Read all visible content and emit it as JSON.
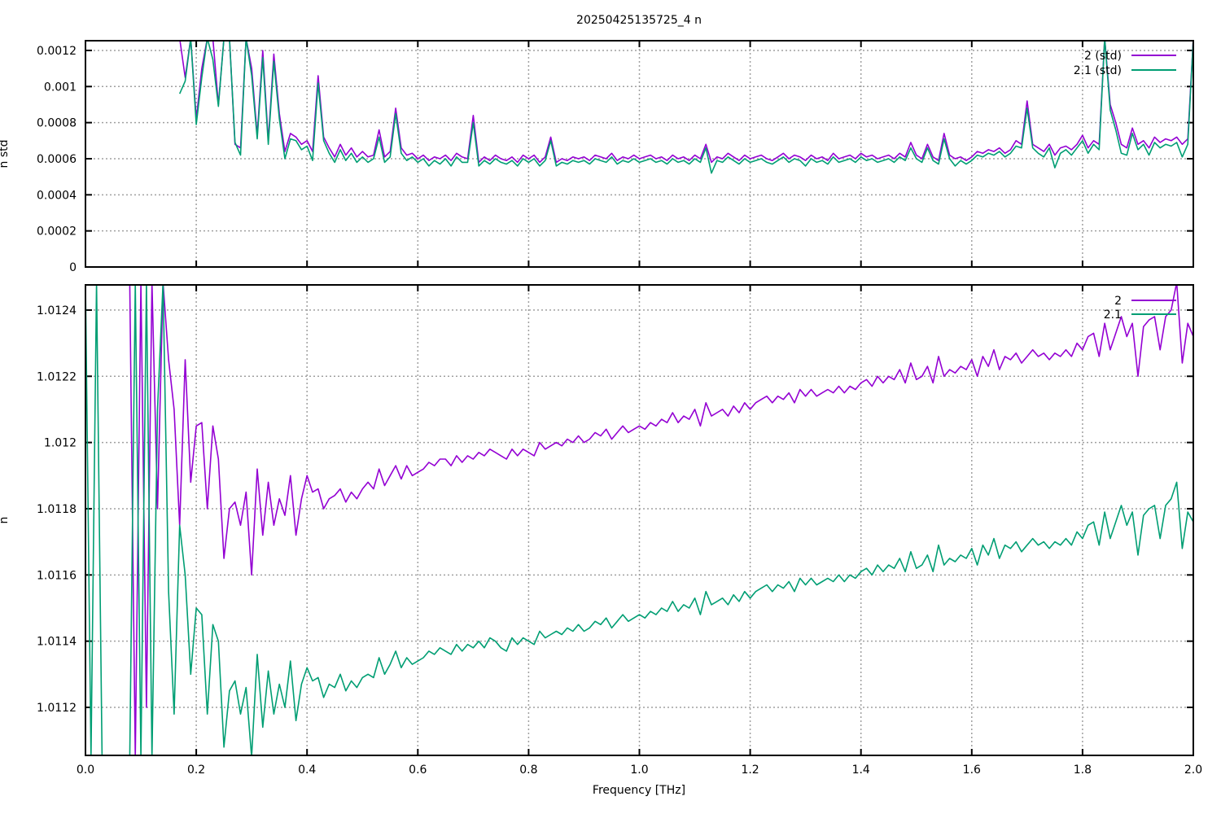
{
  "chart_data": {
    "type": "line",
    "title": "20250425135725_4 n",
    "xlabel": "Frequency [THz]",
    "xlim": [
      0,
      2.0
    ],
    "xticks": [
      "0.0",
      "0.2",
      "0.4",
      "0.6",
      "0.8",
      "1.0",
      "1.2",
      "1.4",
      "1.6",
      "1.8",
      "2.0"
    ],
    "grid": true,
    "colors": {
      "s2": "#9400d3",
      "s21": "#009e73"
    },
    "panels": [
      {
        "ylabel": "n std",
        "ylim": [
          0,
          0.001254
        ],
        "yticks": [
          0,
          0.0002,
          0.0004,
          0.0006,
          0.0008,
          0.001,
          0.0012
        ],
        "ytick_labels": [
          "0",
          "0.0002",
          "0.0004",
          "0.0006",
          "0.0008",
          "0.001",
          "0.0012"
        ],
        "legend_placement": "top-right",
        "series": [
          {
            "name": "2 (std)",
            "color": "#9400d3",
            "x_start": 0.17,
            "x_step": 0.01,
            "values": [
              0.0013,
              0.00105,
              0.0013,
              0.00082,
              0.0011,
              0.0013,
              0.0013,
              0.0009,
              0.0013,
              0.0013,
              0.00068,
              0.00066,
              0.0013,
              0.0011,
              0.00073,
              0.0012,
              0.0007,
              0.00118,
              0.00085,
              0.00064,
              0.00074,
              0.00072,
              0.00068,
              0.0007,
              0.00064,
              0.00106,
              0.00072,
              0.00066,
              0.00061,
              0.00068,
              0.00062,
              0.00066,
              0.00061,
              0.00064,
              0.00061,
              0.00062,
              0.00076,
              0.00061,
              0.00064,
              0.00088,
              0.00066,
              0.00062,
              0.00063,
              0.0006,
              0.00062,
              0.00059,
              0.00061,
              0.0006,
              0.00062,
              0.00059,
              0.00063,
              0.00061,
              0.0006,
              0.00084,
              0.00058,
              0.00061,
              0.00059,
              0.00062,
              0.0006,
              0.00059,
              0.00061,
              0.00058,
              0.00062,
              0.0006,
              0.00062,
              0.00058,
              0.00061,
              0.00072,
              0.00058,
              0.0006,
              0.00059,
              0.00061,
              0.0006,
              0.00061,
              0.00059,
              0.00062,
              0.00061,
              0.0006,
              0.00063,
              0.00059,
              0.00061,
              0.0006,
              0.00062,
              0.0006,
              0.00061,
              0.00062,
              0.0006,
              0.00061,
              0.00059,
              0.00062,
              0.0006,
              0.00061,
              0.00059,
              0.00062,
              0.0006,
              0.00068,
              0.00058,
              0.00061,
              0.0006,
              0.00063,
              0.00061,
              0.00059,
              0.00062,
              0.0006,
              0.00061,
              0.00062,
              0.0006,
              0.00059,
              0.00061,
              0.00063,
              0.0006,
              0.00062,
              0.00061,
              0.00059,
              0.00062,
              0.0006,
              0.00061,
              0.00059,
              0.00063,
              0.0006,
              0.00061,
              0.00062,
              0.0006,
              0.00063,
              0.00061,
              0.00062,
              0.0006,
              0.00061,
              0.00062,
              0.0006,
              0.00063,
              0.00061,
              0.00069,
              0.00062,
              0.0006,
              0.00068,
              0.00061,
              0.00059,
              0.00074,
              0.00062,
              0.0006,
              0.00061,
              0.00059,
              0.00061,
              0.00064,
              0.00063,
              0.00065,
              0.00064,
              0.00066,
              0.00063,
              0.00065,
              0.0007,
              0.00068,
              0.00092,
              0.00068,
              0.00066,
              0.00064,
              0.00068,
              0.00062,
              0.00066,
              0.00067,
              0.00065,
              0.00068,
              0.00073,
              0.00066,
              0.0007,
              0.00068,
              0.0013,
              0.0009,
              0.0008,
              0.00068,
              0.00066,
              0.00077,
              0.00068,
              0.0007,
              0.00066,
              0.00072,
              0.00069,
              0.00071,
              0.0007,
              0.00072,
              0.00068,
              0.00071,
              0.0013,
              0.00072,
              0.00071,
              0.00074,
              0.00072
            ]
          },
          {
            "name": "2.1 (std)",
            "color": "#009e73",
            "x_start": 0.17,
            "x_step": 0.01,
            "values": [
              0.00096,
              0.00103,
              0.0013,
              0.00079,
              0.00105,
              0.0013,
              0.00115,
              0.00089,
              0.0013,
              0.0013,
              0.00069,
              0.00062,
              0.0013,
              0.00106,
              0.00071,
              0.00116,
              0.00068,
              0.00114,
              0.00082,
              0.0006,
              0.00071,
              0.0007,
              0.00065,
              0.00067,
              0.00059,
              0.00102,
              0.0007,
              0.00063,
              0.00058,
              0.00065,
              0.00059,
              0.00063,
              0.00058,
              0.00061,
              0.00058,
              0.0006,
              0.00072,
              0.00058,
              0.00061,
              0.00085,
              0.00063,
              0.00059,
              0.00061,
              0.00058,
              0.0006,
              0.00056,
              0.00059,
              0.00057,
              0.0006,
              0.00056,
              0.00061,
              0.00058,
              0.00058,
              0.0008,
              0.00056,
              0.00059,
              0.00057,
              0.0006,
              0.00058,
              0.00057,
              0.00059,
              0.00056,
              0.0006,
              0.00058,
              0.0006,
              0.00056,
              0.00059,
              0.0007,
              0.00056,
              0.00058,
              0.00057,
              0.00059,
              0.00058,
              0.00059,
              0.00057,
              0.0006,
              0.00059,
              0.00058,
              0.00061,
              0.00057,
              0.00059,
              0.00058,
              0.0006,
              0.00058,
              0.00059,
              0.0006,
              0.00058,
              0.00059,
              0.00057,
              0.0006,
              0.00058,
              0.00059,
              0.00057,
              0.0006,
              0.00058,
              0.00066,
              0.00052,
              0.00059,
              0.00058,
              0.00061,
              0.00059,
              0.00057,
              0.0006,
              0.00058,
              0.00059,
              0.0006,
              0.00058,
              0.00057,
              0.00059,
              0.00061,
              0.00058,
              0.0006,
              0.00059,
              0.00056,
              0.0006,
              0.00058,
              0.00059,
              0.00057,
              0.00061,
              0.00058,
              0.00059,
              0.0006,
              0.00058,
              0.00061,
              0.00059,
              0.0006,
              0.00058,
              0.00059,
              0.0006,
              0.00058,
              0.00061,
              0.00059,
              0.00066,
              0.0006,
              0.00058,
              0.00066,
              0.00059,
              0.00057,
              0.00071,
              0.0006,
              0.00056,
              0.00059,
              0.00057,
              0.00059,
              0.00062,
              0.00061,
              0.00063,
              0.00062,
              0.00064,
              0.00061,
              0.00063,
              0.00067,
              0.00066,
              0.00088,
              0.00066,
              0.00063,
              0.00061,
              0.00066,
              0.00055,
              0.00063,
              0.00065,
              0.00062,
              0.00066,
              0.0007,
              0.00063,
              0.00068,
              0.00065,
              0.0013,
              0.00087,
              0.00076,
              0.00063,
              0.00062,
              0.00074,
              0.00065,
              0.00068,
              0.00062,
              0.00069,
              0.00066,
              0.00068,
              0.00067,
              0.00069,
              0.00061,
              0.00068,
              0.0013,
              0.00069,
              0.00068,
              0.00071,
              0.00066
            ]
          }
        ]
      },
      {
        "ylabel": "n",
        "ylim": [
          1.011055,
          1.012476
        ],
        "yticks": [
          1.0112,
          1.0114,
          1.0116,
          1.0118,
          1.012,
          1.0122,
          1.0124
        ],
        "ytick_labels": [
          "1.0112",
          "1.0114",
          "1.0116",
          "1.0118",
          "1.012",
          "1.0122",
          "1.0124"
        ],
        "legend_placement": "top-right",
        "series": [
          {
            "name": "2",
            "color": "#9400d3",
            "x_start": 0.08,
            "x_step": 0.01,
            "values": [
              1.013,
              1.0105,
              1.0128,
              1.0112,
              1.013,
              1.0118,
              1.013,
              1.01225,
              1.0121,
              1.01175,
              1.01225,
              1.01188,
              1.01205,
              1.01206,
              1.0118,
              1.01205,
              1.01195,
              1.01165,
              1.0118,
              1.01182,
              1.01175,
              1.01185,
              1.0116,
              1.01192,
              1.01172,
              1.01188,
              1.01175,
              1.01183,
              1.01178,
              1.0119,
              1.01172,
              1.01183,
              1.0119,
              1.01185,
              1.01186,
              1.0118,
              1.01183,
              1.01184,
              1.01186,
              1.01182,
              1.01185,
              1.01183,
              1.01186,
              1.01188,
              1.01186,
              1.01192,
              1.01187,
              1.0119,
              1.01193,
              1.01189,
              1.01193,
              1.0119,
              1.01191,
              1.01192,
              1.01194,
              1.01193,
              1.01195,
              1.01195,
              1.01193,
              1.01196,
              1.01194,
              1.01196,
              1.01195,
              1.01197,
              1.01196,
              1.01198,
              1.01197,
              1.01196,
              1.01195,
              1.01198,
              1.01196,
              1.01198,
              1.01197,
              1.01196,
              1.012,
              1.01198,
              1.01199,
              1.012,
              1.01199,
              1.01201,
              1.012,
              1.01202,
              1.012,
              1.01201,
              1.01203,
              1.01202,
              1.01204,
              1.01201,
              1.01203,
              1.01205,
              1.01203,
              1.01204,
              1.01205,
              1.01204,
              1.01206,
              1.01205,
              1.01207,
              1.01206,
              1.01209,
              1.01206,
              1.01208,
              1.01207,
              1.0121,
              1.01205,
              1.01212,
              1.01208,
              1.01209,
              1.0121,
              1.01208,
              1.01211,
              1.01209,
              1.01212,
              1.0121,
              1.01212,
              1.01213,
              1.01214,
              1.01212,
              1.01214,
              1.01213,
              1.01215,
              1.01212,
              1.01216,
              1.01214,
              1.01216,
              1.01214,
              1.01215,
              1.01216,
              1.01215,
              1.01217,
              1.01215,
              1.01217,
              1.01216,
              1.01218,
              1.01219,
              1.01217,
              1.0122,
              1.01218,
              1.0122,
              1.01219,
              1.01222,
              1.01218,
              1.01224,
              1.01219,
              1.0122,
              1.01223,
              1.01218,
              1.01226,
              1.0122,
              1.01222,
              1.01221,
              1.01223,
              1.01222,
              1.01225,
              1.0122,
              1.01226,
              1.01223,
              1.01228,
              1.01222,
              1.01226,
              1.01225,
              1.01227,
              1.01224,
              1.01226,
              1.01228,
              1.01226,
              1.01227,
              1.01225,
              1.01227,
              1.01226,
              1.01228,
              1.01226,
              1.0123,
              1.01228,
              1.01232,
              1.01233,
              1.01226,
              1.01236,
              1.01228,
              1.01233,
              1.01238,
              1.01232,
              1.01236,
              1.0122,
              1.01235,
              1.01237,
              1.01238,
              1.01228,
              1.01238,
              1.0124,
              1.0125,
              1.01224,
              1.01236,
              1.01232
            ]
          },
          {
            "name": "2.1",
            "color": "#009e73",
            "x_start": 0.0,
            "x_step": 0.01,
            "values": [
              1.013,
              1.01,
              1.013,
              1.01,
              null,
              null,
              null,
              null,
              1.01,
              1.013,
              1.0105,
              1.0125,
              1.0108,
              1.0121,
              1.0128,
              1.01155,
              1.01118,
              1.01175,
              1.0116,
              1.0113,
              1.0115,
              1.01148,
              1.01118,
              1.01145,
              1.0114,
              1.01108,
              1.01125,
              1.01128,
              1.01118,
              1.01126,
              1.01105,
              1.01136,
              1.01114,
              1.01131,
              1.01118,
              1.01127,
              1.0112,
              1.01134,
              1.01116,
              1.01127,
              1.01132,
              1.01128,
              1.01129,
              1.01123,
              1.01127,
              1.01126,
              1.0113,
              1.01125,
              1.01128,
              1.01126,
              1.01129,
              1.0113,
              1.01129,
              1.01135,
              1.0113,
              1.01133,
              1.01137,
              1.01132,
              1.01135,
              1.01133,
              1.01134,
              1.01135,
              1.01137,
              1.01136,
              1.01138,
              1.01137,
              1.01136,
              1.01139,
              1.01137,
              1.01139,
              1.01138,
              1.0114,
              1.01138,
              1.01141,
              1.0114,
              1.01138,
              1.01137,
              1.01141,
              1.01139,
              1.01141,
              1.0114,
              1.01139,
              1.01143,
              1.01141,
              1.01142,
              1.01143,
              1.01142,
              1.01144,
              1.01143,
              1.01145,
              1.01143,
              1.01144,
              1.01146,
              1.01145,
              1.01147,
              1.01144,
              1.01146,
              1.01148,
              1.01146,
              1.01147,
              1.01148,
              1.01147,
              1.01149,
              1.01148,
              1.0115,
              1.01149,
              1.01152,
              1.01149,
              1.01151,
              1.0115,
              1.01153,
              1.01148,
              1.01155,
              1.01151,
              1.01152,
              1.01153,
              1.01151,
              1.01154,
              1.01152,
              1.01155,
              1.01153,
              1.01155,
              1.01156,
              1.01157,
              1.01155,
              1.01157,
              1.01156,
              1.01158,
              1.01155,
              1.01159,
              1.01157,
              1.01159,
              1.01157,
              1.01158,
              1.01159,
              1.01158,
              1.0116,
              1.01158,
              1.0116,
              1.01159,
              1.01161,
              1.01162,
              1.0116,
              1.01163,
              1.01161,
              1.01163,
              1.01162,
              1.01165,
              1.01161,
              1.01167,
              1.01162,
              1.01163,
              1.01166,
              1.01161,
              1.01169,
              1.01163,
              1.01165,
              1.01164,
              1.01166,
              1.01165,
              1.01168,
              1.01163,
              1.01169,
              1.01166,
              1.01171,
              1.01165,
              1.01169,
              1.01168,
              1.0117,
              1.01167,
              1.01169,
              1.01171,
              1.01169,
              1.0117,
              1.01168,
              1.0117,
              1.01169,
              1.01171,
              1.01169,
              1.01173,
              1.01171,
              1.01175,
              1.01176,
              1.01169,
              1.01179,
              1.01171,
              1.01176,
              1.01181,
              1.01175,
              1.01179,
              1.01166,
              1.01178,
              1.0118,
              1.01181,
              1.01171,
              1.01181,
              1.01183,
              1.01188,
              1.01168,
              1.01179,
              1.01176
            ]
          }
        ]
      }
    ]
  }
}
